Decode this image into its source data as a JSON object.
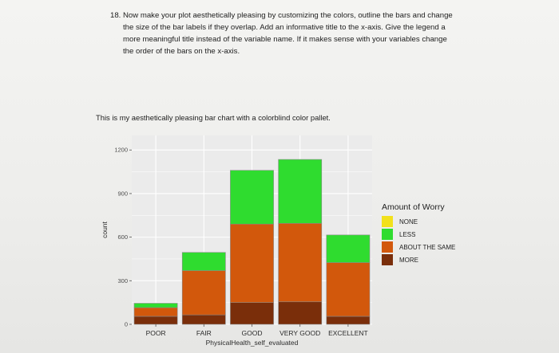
{
  "question": {
    "number": "18.",
    "text": "Now make your plot aesthetically pleasing by customizing the colors, outline the bars and change the size of the bar labels if they overlap. Add an informative title to the x-axis. Give the legend a more meaningful title instead of the variable name. If it makes sense with your variables change the order of the bars on the x-axis."
  },
  "caption": "This is my aesthetically pleasing bar chart with a colorblind color pallet.",
  "colors": {
    "NONE": "#f2e11b",
    "LESS": "#2fdc2f",
    "ABOUT THE SAME": "#d2580c",
    "MORE": "#7a2e0a",
    "panel": "#ebebeb",
    "grid": "#ffffff",
    "outline": "#8a8a8a"
  },
  "chart_data": {
    "type": "bar",
    "stacked": true,
    "categories": [
      "POOR",
      "FAIR",
      "GOOD",
      "VERY GOOD",
      "EXCELLENT"
    ],
    "series": [
      {
        "name": "MORE",
        "values": [
          55,
          65,
          150,
          155,
          55
        ]
      },
      {
        "name": "ABOUT THE SAME",
        "values": [
          60,
          305,
          540,
          540,
          370
        ]
      },
      {
        "name": "LESS",
        "values": [
          30,
          125,
          370,
          440,
          190
        ]
      },
      {
        "name": "NONE",
        "values": [
          0,
          0,
          0,
          0,
          0
        ]
      }
    ],
    "ylim": [
      0,
      1300
    ],
    "yticks": [
      0,
      300,
      600,
      900,
      1200
    ],
    "ylabel": "count",
    "xlabel": "PhysicalHealth_self_evaluated",
    "legend_title": "Amount of Worry",
    "legend_position": "right",
    "legend_entries": [
      "NONE",
      "LESS",
      "ABOUT THE SAME",
      "MORE"
    ],
    "grid": true
  }
}
